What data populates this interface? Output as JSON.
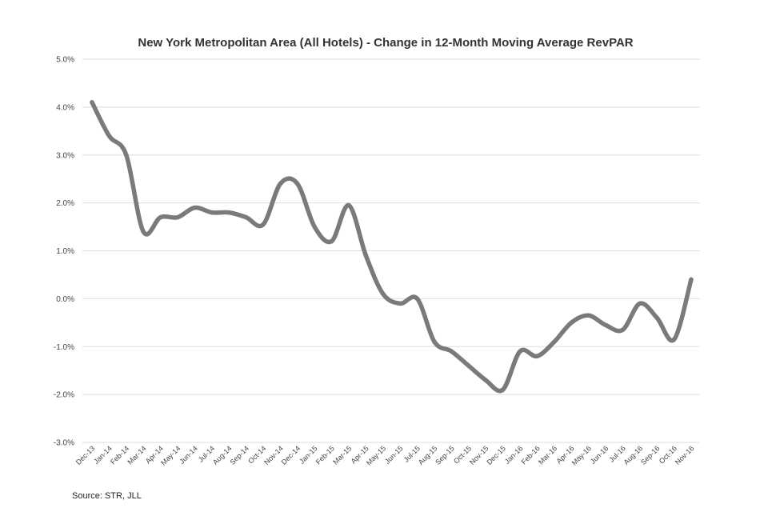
{
  "chart_data": {
    "type": "line",
    "title": "New York Metropolitan Area (All Hotels) - Change in 12-Month Moving Average RevPAR",
    "xlabel": "",
    "ylabel": "",
    "ylim": [
      -3.0,
      5.0
    ],
    "yticks": [
      5.0,
      4.0,
      3.0,
      2.0,
      1.0,
      0.0,
      -1.0,
      -2.0,
      -3.0
    ],
    "ytick_labels": [
      "5.0%",
      "4.0%",
      "3.0%",
      "2.0%",
      "1.0%",
      "0.0%",
      "-1.0%",
      "-2.0%",
      "-3.0%"
    ],
    "grid": true,
    "legend": "none",
    "categories": [
      "Dec-13",
      "Jan-14",
      "Feb-14",
      "Mar-14",
      "Apr-14",
      "May-14",
      "Jun-14",
      "Jul-14",
      "Aug-14",
      "Sep-14",
      "Oct-14",
      "Nov-14",
      "Dec-14",
      "Jan-15",
      "Feb-15",
      "Mar-15",
      "Apr-15",
      "May-15",
      "Jun-15",
      "Jul-15",
      "Aug-15",
      "Sep-15",
      "Oct-15",
      "Nov-15",
      "Dec-15",
      "Jan-16",
      "Feb-16",
      "Mar-16",
      "Apr-16",
      "May-16",
      "Jun-16",
      "Jul-16",
      "Aug-16",
      "Sep-16",
      "Oct-16",
      "Nov-16"
    ],
    "series": [
      {
        "values": [
          4.1,
          3.4,
          3.0,
          1.4,
          1.7,
          1.7,
          1.9,
          1.8,
          1.8,
          1.7,
          1.55,
          2.4,
          2.4,
          1.5,
          1.2,
          1.95,
          0.9,
          0.1,
          -0.1,
          0.0,
          -0.9,
          -1.1,
          -1.4,
          -1.7,
          -1.9,
          -1.1,
          -1.2,
          -0.9,
          -0.5,
          -0.35,
          -0.55,
          -0.65,
          -0.1,
          -0.4,
          -0.85,
          0.4
        ],
        "color": "#7a7a7a"
      }
    ],
    "source": "Source: STR, JLL"
  }
}
